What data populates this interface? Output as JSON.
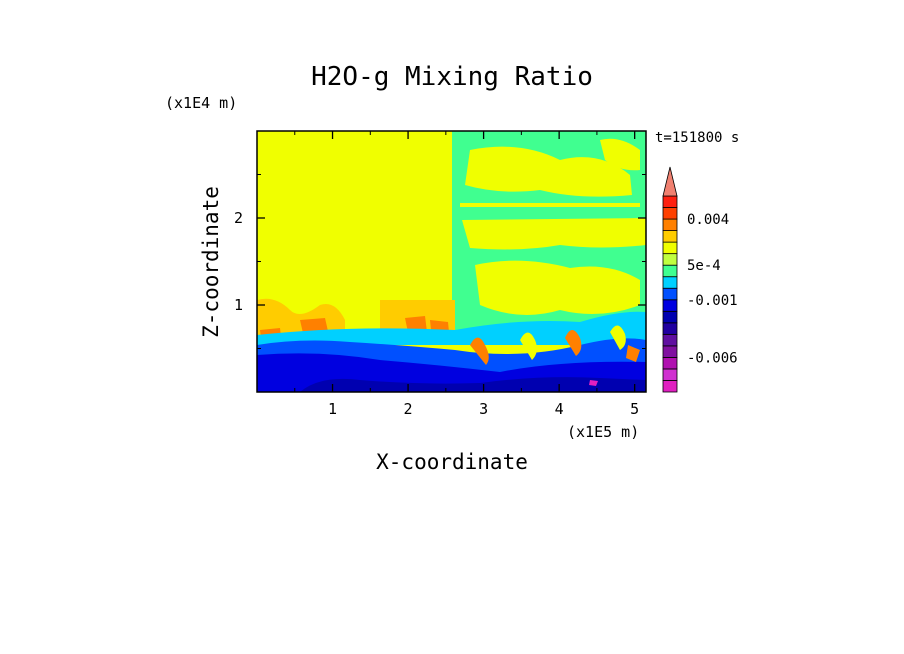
{
  "chart_data": {
    "type": "heatmap",
    "title": "H2O-g Mixing Ratio",
    "xlabel": "X-coordinate",
    "ylabel": "Z-coordinate",
    "x_unit": "(x1E5 m)",
    "y_unit": "(x1E4 m)",
    "time_label": "t=151800 s",
    "xlim": [
      0,
      5.15
    ],
    "ylim": [
      0,
      3.0
    ],
    "xticks": [
      "1",
      "2",
      "3",
      "4",
      "5"
    ],
    "yticks": [
      "1",
      "2"
    ],
    "colorbar": {
      "levels": [
        -0.009,
        -0.008,
        -0.007,
        -0.006,
        -0.005,
        -0.004,
        -0.003,
        -0.002,
        -0.001,
        -0.0005,
        0,
        0.0005,
        0.001,
        0.002,
        0.003,
        0.004,
        0.005,
        0.006
      ],
      "labeled_ticks": [
        "0.004",
        "5e-4",
        "-0.001",
        "-0.006"
      ],
      "extend": "max",
      "colors": [
        "#e020c0",
        "#d030d0",
        "#b010b0",
        "#8010a0",
        "#6010a0",
        "#2000a0",
        "#0000b0",
        "#0000e0",
        "#0050ff",
        "#00d0ff",
        "#40ff90",
        "#c0ff40",
        "#f0ff00",
        "#ffcc00",
        "#ff8000",
        "#ff4000",
        "#ff2010",
        "#f08070"
      ]
    },
    "field_description_colors": {
      "background_upper_left": "#f0ff00",
      "upper_right_mixed": "#40ff90",
      "lower_band": "#0000e0"
    }
  }
}
